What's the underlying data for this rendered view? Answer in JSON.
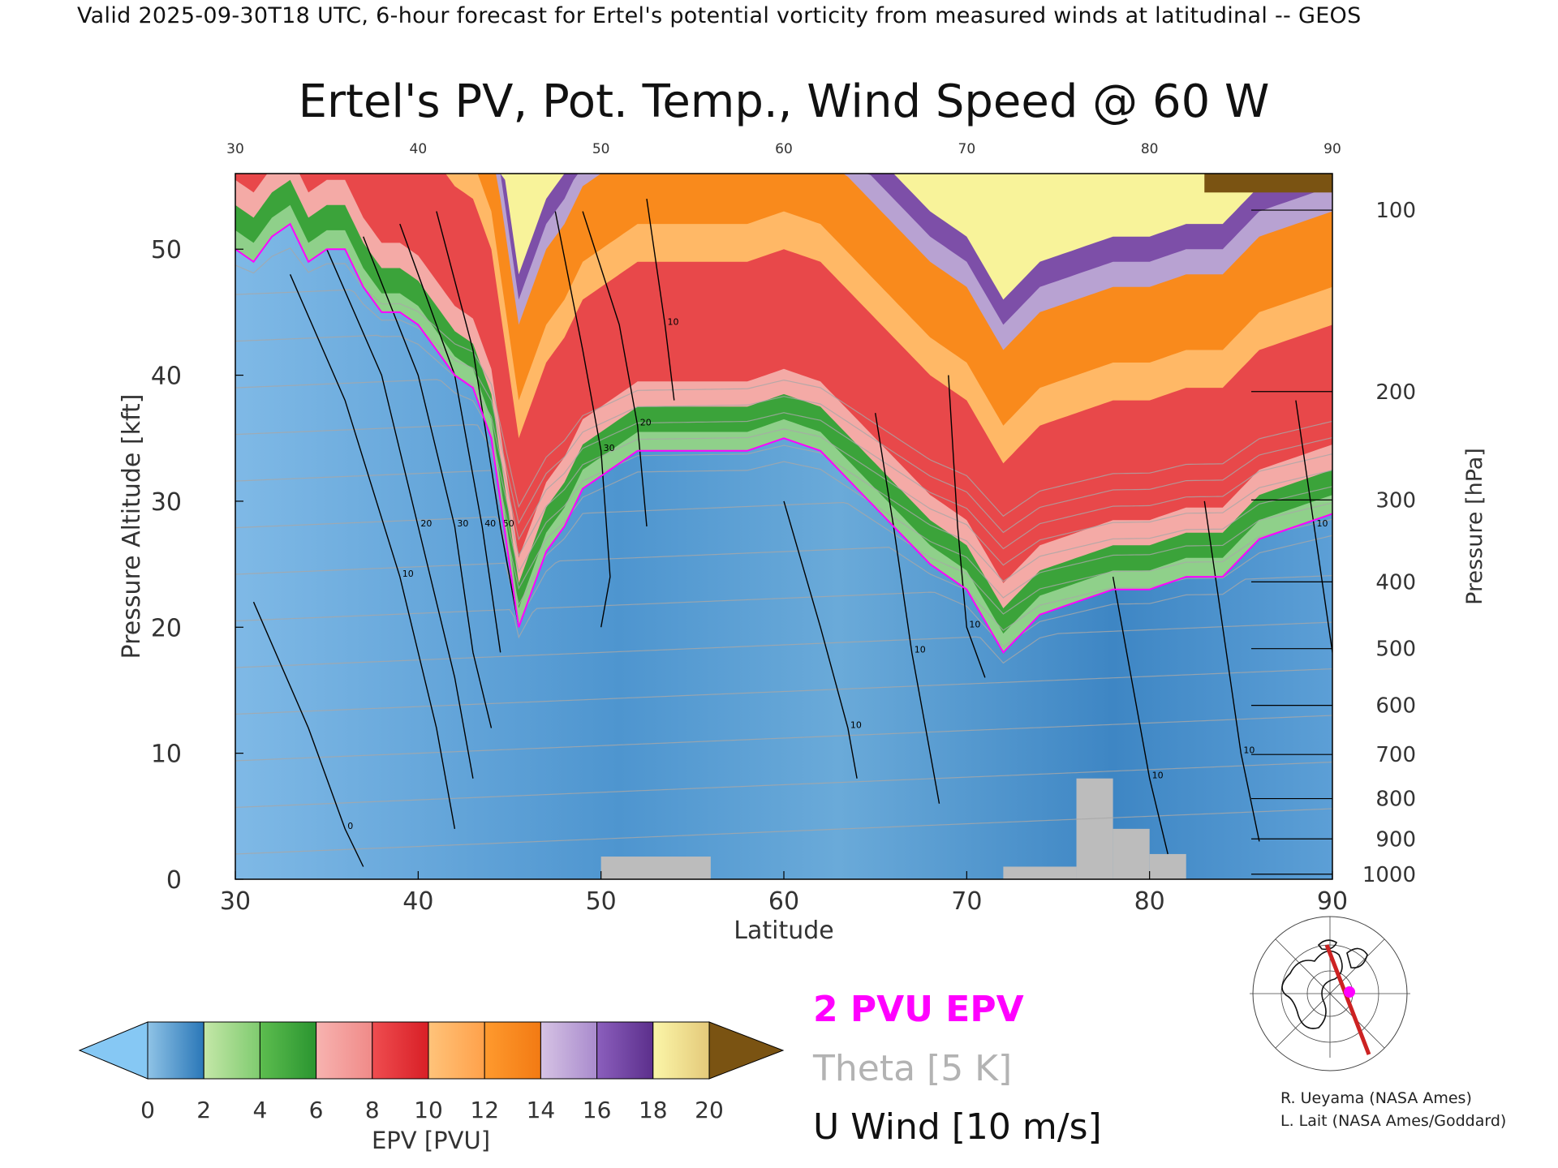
{
  "header": {
    "valid_line": "Valid 2025-09-30T18 UTC, 6-hour forecast for Ertel's potential vorticity from measured winds at latitudinal -- GEOS"
  },
  "chart_data": {
    "type": "heatmap",
    "title": "Ertel's PV, Pot. Temp., Wind Speed @ 60 W",
    "xlabel": "Latitude",
    "ylabel": "Pressure Altitude [kft]",
    "ylabel_right": "Pressure [hPa]",
    "xlim": [
      30,
      90
    ],
    "ylim": [
      0,
      56
    ],
    "x_ticks": [
      30,
      40,
      50,
      60,
      70,
      80,
      90
    ],
    "y_ticks": [
      0,
      10,
      20,
      30,
      40,
      50
    ],
    "top_x_ticks": [
      30,
      40,
      50,
      60,
      70,
      80,
      90
    ],
    "pressure_ticks": [
      {
        "label": "100",
        "kft": 53.1
      },
      {
        "label": "200",
        "kft": 38.7
      },
      {
        "label": "300",
        "kft": 30.1
      },
      {
        "label": "400",
        "kft": 23.6
      },
      {
        "label": "500",
        "kft": 18.3
      },
      {
        "label": "600",
        "kft": 13.8
      },
      {
        "label": "700",
        "kft": 9.9
      },
      {
        "label": "800",
        "kft": 6.4
      },
      {
        "label": "900",
        "kft": 3.2
      },
      {
        "label": "1000",
        "kft": 0.4
      }
    ],
    "tropopause_2pvu_kft": [
      [
        30,
        50
      ],
      [
        31,
        49
      ],
      [
        32,
        51
      ],
      [
        33,
        52
      ],
      [
        34,
        49
      ],
      [
        35,
        50
      ],
      [
        36,
        50
      ],
      [
        37,
        47
      ],
      [
        38,
        45
      ],
      [
        39,
        45
      ],
      [
        40,
        44
      ],
      [
        41,
        42
      ],
      [
        42,
        40
      ],
      [
        43,
        39
      ],
      [
        44,
        35
      ],
      [
        45,
        25
      ],
      [
        45.5,
        20
      ],
      [
        46,
        22
      ],
      [
        47,
        26
      ],
      [
        48,
        28
      ],
      [
        49,
        31
      ],
      [
        50,
        32
      ],
      [
        52,
        34
      ],
      [
        55,
        34
      ],
      [
        58,
        34
      ],
      [
        60,
        35
      ],
      [
        62,
        34
      ],
      [
        64,
        31
      ],
      [
        66,
        28
      ],
      [
        68,
        25
      ],
      [
        70,
        23
      ],
      [
        72,
        18
      ],
      [
        74,
        21
      ],
      [
        76,
        22
      ],
      [
        78,
        23
      ],
      [
        80,
        23
      ],
      [
        82,
        24
      ],
      [
        84,
        24
      ],
      [
        86,
        27
      ],
      [
        88,
        28
      ],
      [
        90,
        29
      ]
    ],
    "epv_bands": [
      {
        "epv": 2,
        "color": "#8fd08a",
        "offset_kft": 0
      },
      {
        "epv": 4,
        "color": "#3ba33a",
        "offset_kft": 1.5
      },
      {
        "epv": 6,
        "color": "#f4aaa6",
        "offset_kft": 3.5
      },
      {
        "epv": 8,
        "color": "#e8484a",
        "offset_kft": 5.5
      },
      {
        "epv": 10,
        "color": "#ffb866",
        "offset_kft": 15
      },
      {
        "epv": 12,
        "color": "#f98a1c",
        "offset_kft": 18
      },
      {
        "epv": 14,
        "color": "#b8a2d2",
        "offset_kft": 24
      },
      {
        "epv": 16,
        "color": "#7d4fa8",
        "offset_kft": 26
      },
      {
        "epv": 18,
        "color": "#f8f39a",
        "offset_kft": 28
      }
    ],
    "surface_gray_regions": [
      {
        "x": [
          50,
          56
        ],
        "top_kft": 1.8
      },
      {
        "x": [
          72,
          76
        ],
        "top_kft": 1.0
      },
      {
        "x": [
          76,
          78
        ],
        "top_kft": 8.0
      },
      {
        "x": [
          78,
          80
        ],
        "top_kft": 4.0
      },
      {
        "x": [
          80,
          82
        ],
        "top_kft": 2.0
      }
    ],
    "theta_levels": [
      300,
      310,
      320,
      330,
      340,
      350,
      360,
      370,
      380,
      390,
      400,
      410,
      420,
      430
    ],
    "u_wind_contours": [
      {
        "label": "0",
        "points": [
          [
            31,
            22
          ],
          [
            34,
            12
          ],
          [
            36,
            4
          ],
          [
            37,
            1
          ]
        ]
      },
      {
        "label": "10",
        "points": [
          [
            33,
            48
          ],
          [
            36,
            38
          ],
          [
            39,
            24
          ],
          [
            41,
            12
          ],
          [
            42,
            4
          ]
        ]
      },
      {
        "label": "20",
        "points": [
          [
            35,
            50
          ],
          [
            38,
            40
          ],
          [
            40,
            28
          ],
          [
            42,
            16
          ],
          [
            43,
            8
          ]
        ]
      },
      {
        "label": "30",
        "points": [
          [
            37,
            51
          ],
          [
            40,
            40
          ],
          [
            42,
            28
          ],
          [
            43,
            18
          ],
          [
            44,
            12
          ]
        ]
      },
      {
        "label": "40",
        "points": [
          [
            39,
            52
          ],
          [
            42,
            40
          ],
          [
            43.5,
            28
          ],
          [
            44.5,
            18
          ]
        ]
      },
      {
        "label": "50",
        "points": [
          [
            41,
            53
          ],
          [
            43,
            42
          ],
          [
            44.5,
            28
          ],
          [
            45.5,
            20
          ]
        ]
      },
      {
        "label": "30",
        "points": [
          [
            47.5,
            53
          ],
          [
            49,
            42
          ],
          [
            50,
            34
          ],
          [
            50.5,
            24
          ],
          [
            50,
            20
          ]
        ]
      },
      {
        "label": "20",
        "points": [
          [
            49,
            53
          ],
          [
            51,
            44
          ],
          [
            52,
            36
          ],
          [
            52.5,
            28
          ]
        ]
      },
      {
        "label": "10",
        "points": [
          [
            52.5,
            54
          ],
          [
            53.5,
            44
          ],
          [
            54,
            38
          ]
        ]
      },
      {
        "label": "10",
        "points": [
          [
            60,
            30
          ],
          [
            62,
            20
          ],
          [
            63.5,
            12
          ],
          [
            64,
            8
          ]
        ]
      },
      {
        "label": "10",
        "points": [
          [
            65,
            37
          ],
          [
            66,
            28
          ],
          [
            67,
            18
          ],
          [
            68,
            10
          ],
          [
            68.5,
            6
          ]
        ]
      },
      {
        "label": "10",
        "points": [
          [
            69,
            40
          ],
          [
            69.5,
            28
          ],
          [
            70,
            20
          ],
          [
            71,
            16
          ]
        ]
      },
      {
        "label": "10",
        "points": [
          [
            78,
            24
          ],
          [
            79,
            16
          ],
          [
            80,
            8
          ],
          [
            81,
            2
          ]
        ]
      },
      {
        "label": "10",
        "points": [
          [
            83,
            30
          ],
          [
            84,
            20
          ],
          [
            85,
            10
          ],
          [
            86,
            3
          ]
        ]
      },
      {
        "label": "10",
        "points": [
          [
            88,
            38
          ],
          [
            89,
            28
          ],
          [
            90,
            18
          ]
        ]
      }
    ]
  },
  "colorbar": {
    "label": "EPV [PVU]",
    "ticks": [
      "0",
      "2",
      "4",
      "6",
      "8",
      "10",
      "12",
      "14",
      "16",
      "18",
      "20"
    ],
    "under_color": "#86c8f4",
    "over_color": "#7a5312",
    "bands": [
      [
        "#8fc3e6",
        "#2a77b8"
      ],
      [
        "#c4e7a8",
        "#7fcb6f"
      ],
      [
        "#5dbd4f",
        "#2a9530"
      ],
      [
        "#f7b3b0",
        "#f08a88"
      ],
      [
        "#ef4d50",
        "#d81f26"
      ],
      [
        "#ffc37a",
        "#ffa14a"
      ],
      [
        "#ff9a2e",
        "#f27a13"
      ],
      [
        "#d6c3e4",
        "#a98bcd"
      ],
      [
        "#8b5fbd",
        "#5c2f8c"
      ],
      [
        "#fbf6a8",
        "#e4c97a"
      ]
    ]
  },
  "legend": {
    "items": [
      {
        "label": "2 PVU EPV",
        "color": "#ff00ff"
      },
      {
        "label": "Theta [5 K]",
        "color": "#b3b3b3"
      },
      {
        "label": "U Wind [10 m/s]",
        "color": "#000000"
      }
    ]
  },
  "inset_map": {
    "marker_color": "#ff00ff",
    "section_color": "#cc2222"
  },
  "credits": {
    "line1": "R. Ueyama (NASA Ames)",
    "line2": "L. Lait (NASA Ames/Goddard)"
  },
  "colors": {
    "background_field": "#5a9fd6",
    "surface_gray": "#bcbcbc",
    "tropopause": "#ff00ff",
    "theta": "#a8a8a8",
    "wind": "#000000"
  }
}
